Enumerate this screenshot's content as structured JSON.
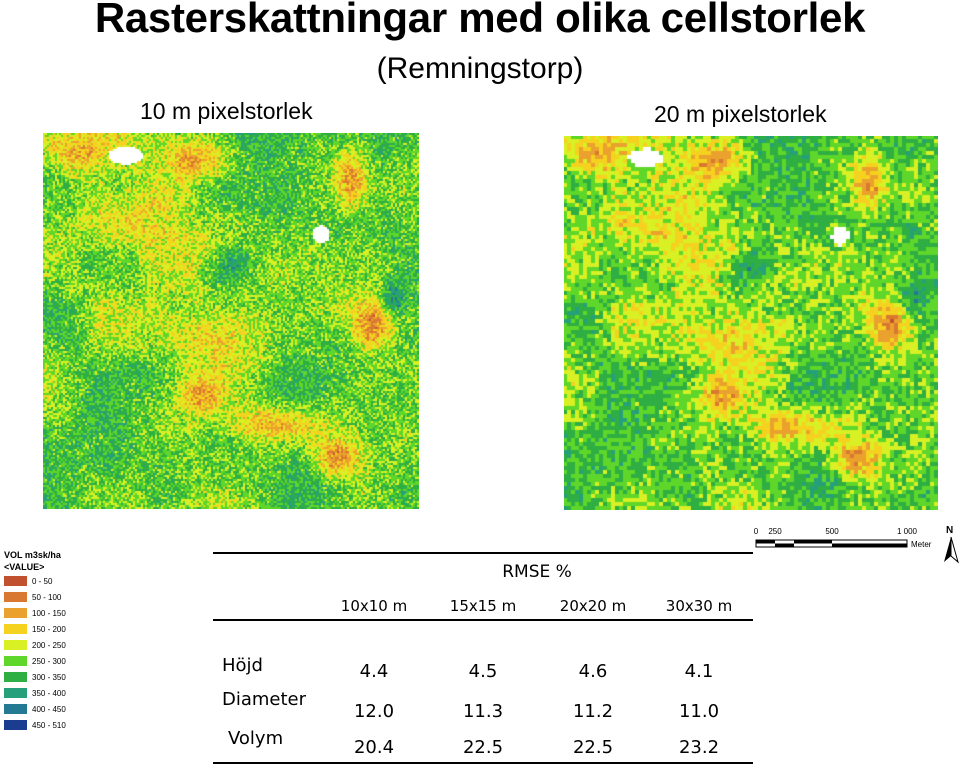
{
  "title": "Rasterskattningar med olika cellstorlek",
  "subtitle": "(Remningstorp)",
  "maps": {
    "left_label": "10 m pixelstorlek",
    "right_label": "20 m pixelstorlek"
  },
  "legend": {
    "title": "VOL m3sk/ha",
    "subtitle": "<VALUE>",
    "classes": [
      {
        "label": "0 - 50",
        "color": "#c1512e"
      },
      {
        "label": "50 - 100",
        "color": "#d97830"
      },
      {
        "label": "100 - 150",
        "color": "#eaa12e"
      },
      {
        "label": "150 - 200",
        "color": "#f5d21f"
      },
      {
        "label": "200 - 250",
        "color": "#d8f024"
      },
      {
        "label": "250 - 300",
        "color": "#5ed62a"
      },
      {
        "label": "300 - 350",
        "color": "#2eae43"
      },
      {
        "label": "350 - 400",
        "color": "#26a07a"
      },
      {
        "label": "400 - 450",
        "color": "#247a92"
      },
      {
        "label": "450 - 510",
        "color": "#1a3d8f"
      }
    ]
  },
  "rmse_table": {
    "header": "RMSE %",
    "columns": [
      "10x10 m",
      "15x15 m",
      "20x20 m",
      "30x30 m"
    ],
    "rows": [
      {
        "label": "Höjd",
        "values": [
          "4.4",
          "4.5",
          "4.6",
          "4.1"
        ]
      },
      {
        "label": "Diameter",
        "values": [
          "12.0",
          "11.3",
          "11.2",
          "11.0"
        ]
      },
      {
        "label": "Volym",
        "values": [
          "20.4",
          "22.5",
          "22.5",
          "23.2"
        ]
      }
    ]
  },
  "scale_bar": {
    "ticks": [
      "0",
      "250",
      "500",
      "1 000"
    ],
    "unit": "Meter"
  },
  "north_arrow": {
    "letter": "N",
    "icon": "north-arrow-icon"
  }
}
